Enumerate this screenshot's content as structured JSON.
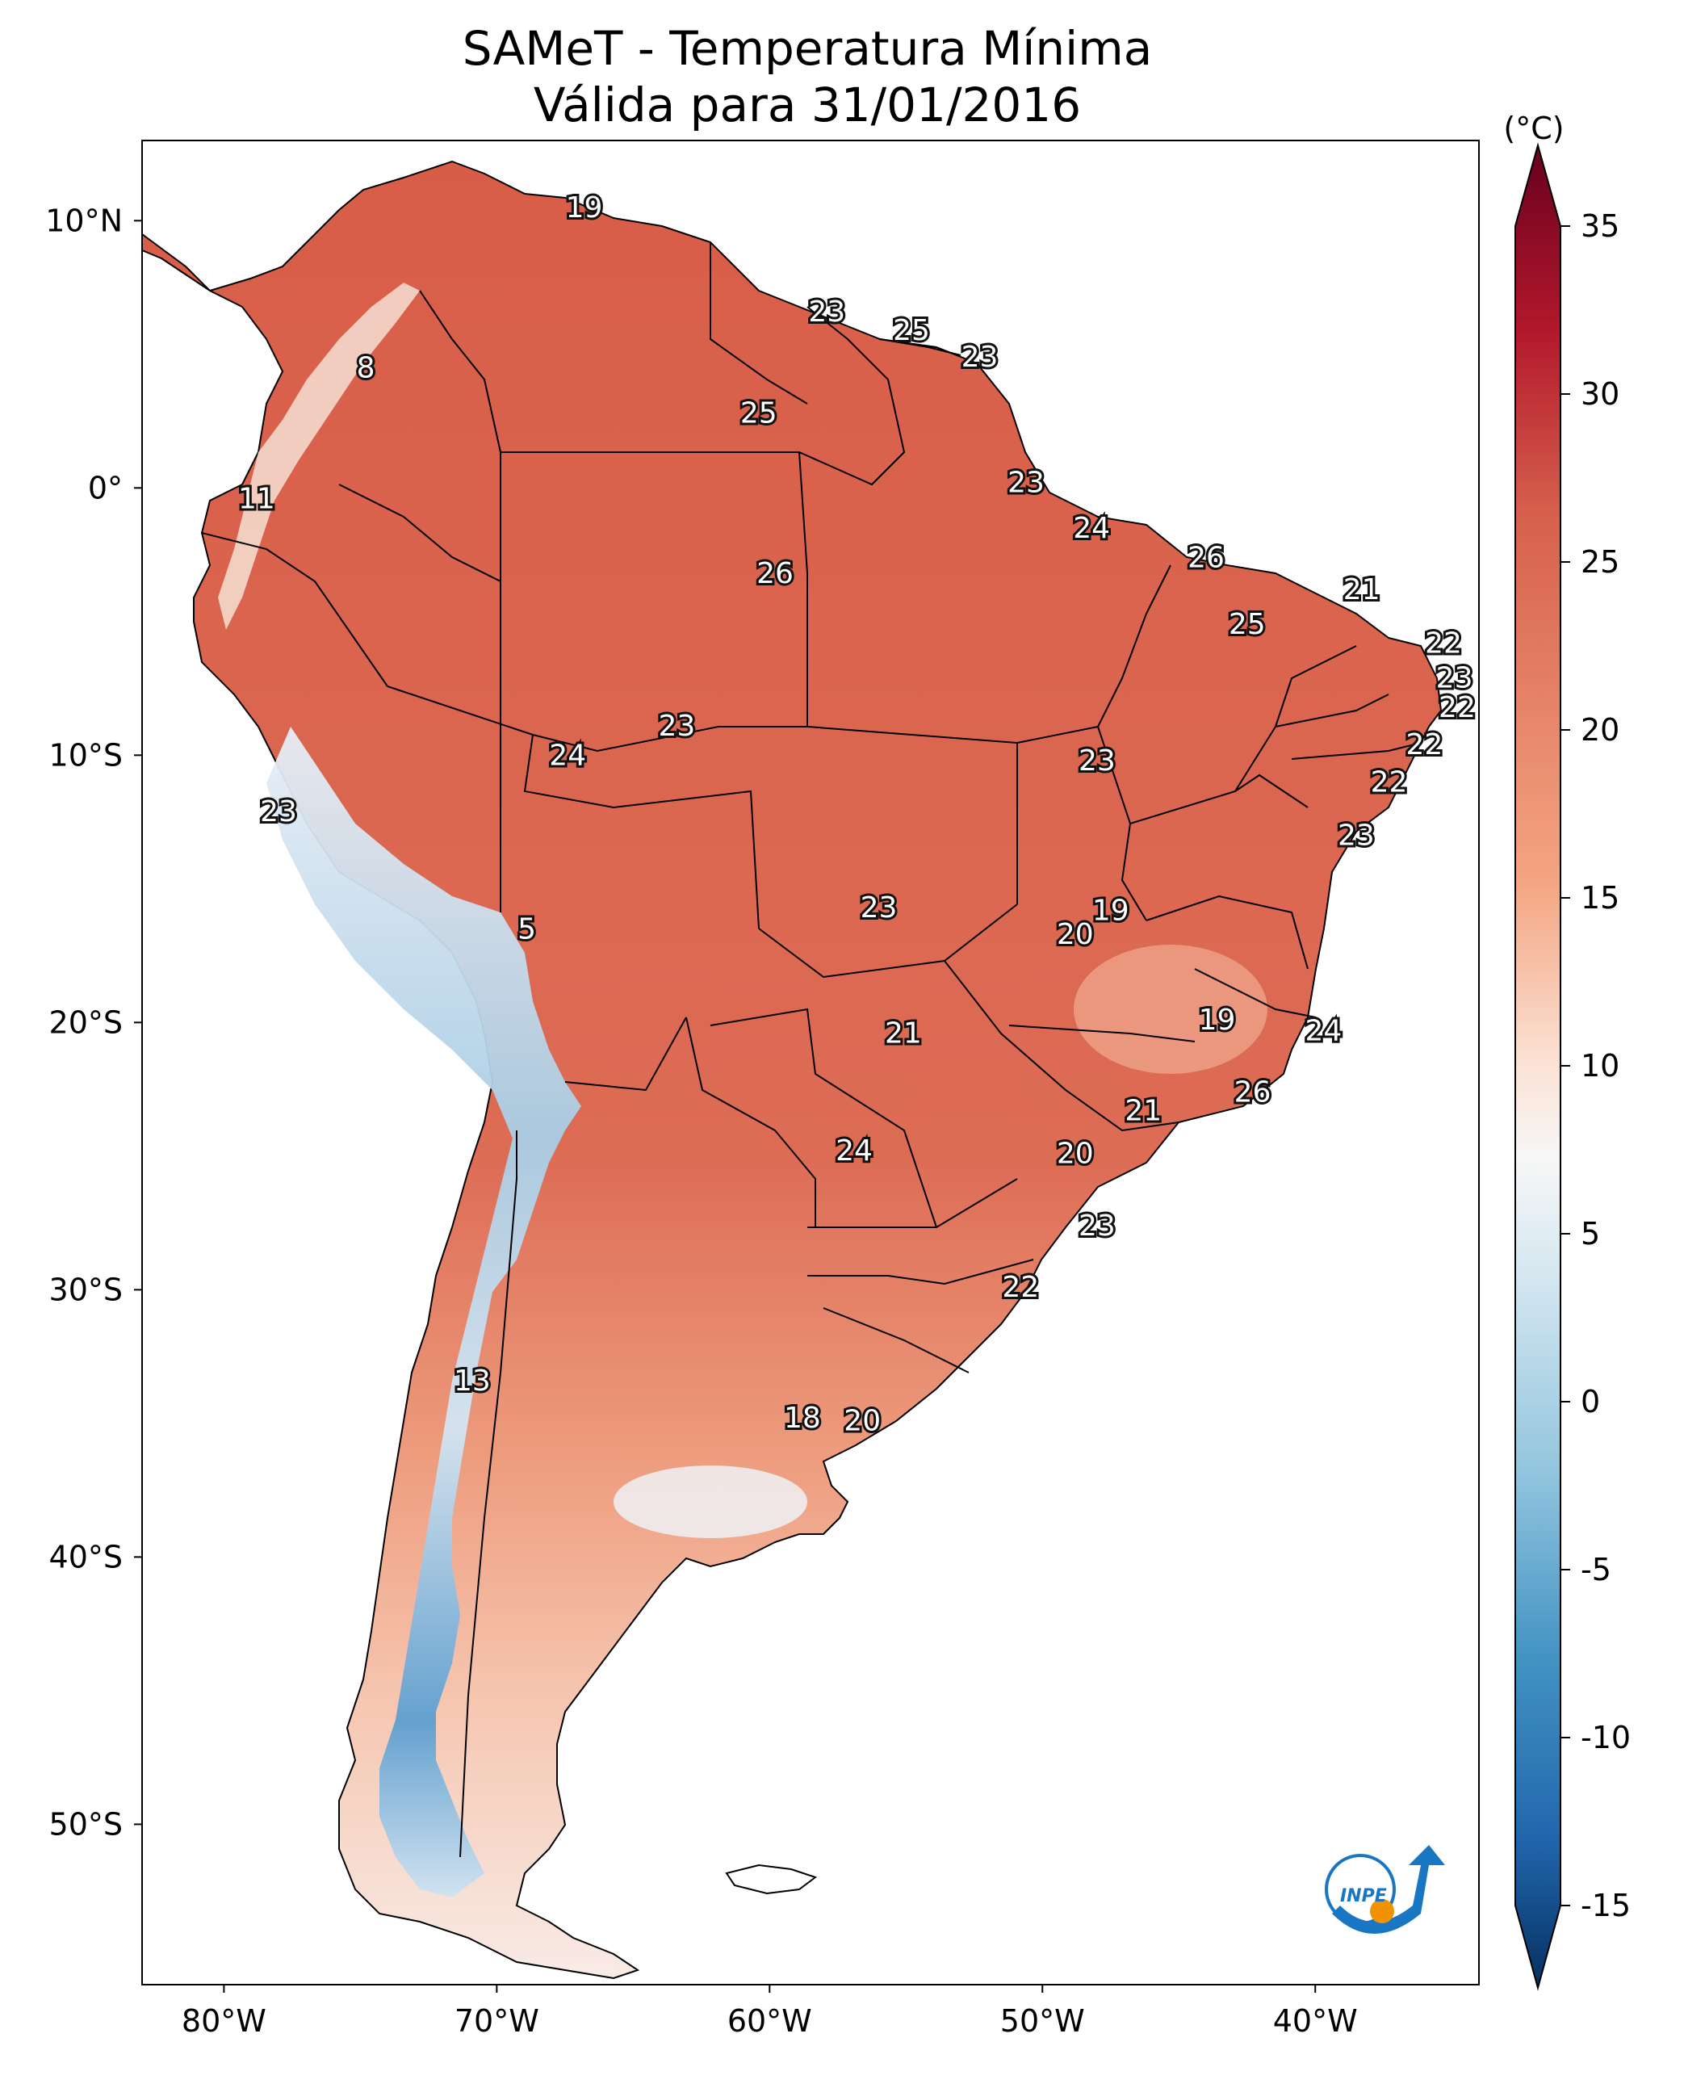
{
  "title_line1": "SAMeT - Temperatura Mínima",
  "title_line2": "Válida para 31/01/2016",
  "colorbar": {
    "unit": "(°C)",
    "ticks": [
      "35",
      "30",
      "25",
      "20",
      "15",
      "10",
      "5",
      "0",
      "-5",
      "-10",
      "-15"
    ],
    "tick_values": [
      35,
      30,
      25,
      20,
      15,
      10,
      5,
      0,
      -5,
      -10,
      -15
    ],
    "range": [
      -15,
      35
    ],
    "extend": "both",
    "colormap": "RdBu_r",
    "colors": {
      "max": "#67001f",
      "warm": "#d6604d",
      "mid": "#f7f7f7",
      "cool": "#4393c3",
      "min": "#053061"
    }
  },
  "axes": {
    "lon_ticks": [
      "80°W",
      "70°W",
      "60°W",
      "50°W",
      "40°W"
    ],
    "lat_ticks": [
      "10°N",
      "0°",
      "10°S",
      "20°S",
      "30°S",
      "40°S",
      "50°S"
    ],
    "lon_range": [
      -83,
      -34
    ],
    "lat_range": [
      -56,
      13
    ]
  },
  "map": {
    "land_warm": "#dc6c55",
    "land_mild": "#f0a183",
    "andes_cold": "#c6dbef",
    "andes_very_cold": "#6aa4d1",
    "border_color": "#000000"
  },
  "logo": {
    "text": "INPE",
    "primary": "#1976c2",
    "accent": "#f39200"
  },
  "labels": [
    {
      "text": "19",
      "lon": -66.8,
      "lat": 10.5
    },
    {
      "text": "23",
      "lon": -57.9,
      "lat": 6.6
    },
    {
      "text": "25",
      "lon": -54.8,
      "lat": 5.9
    },
    {
      "text": "23",
      "lon": -52.3,
      "lat": 4.9
    },
    {
      "text": "8",
      "lon": -74.8,
      "lat": 4.5
    },
    {
      "text": "25",
      "lon": -60.4,
      "lat": 2.8
    },
    {
      "text": "23",
      "lon": -50.6,
      "lat": 0.2
    },
    {
      "text": "11",
      "lon": -78.8,
      "lat": -0.4
    },
    {
      "text": "24",
      "lon": -48.2,
      "lat": -1.5
    },
    {
      "text": "26",
      "lon": -44.0,
      "lat": -2.6
    },
    {
      "text": "26",
      "lon": -59.8,
      "lat": -3.2
    },
    {
      "text": "21",
      "lon": -38.3,
      "lat": -3.8
    },
    {
      "text": "25",
      "lon": -42.5,
      "lat": -5.1
    },
    {
      "text": "22",
      "lon": -35.3,
      "lat": -5.8
    },
    {
      "text": "23",
      "lon": -34.9,
      "lat": -7.1
    },
    {
      "text": "22",
      "lon": -34.8,
      "lat": -8.2
    },
    {
      "text": "23",
      "lon": -63.4,
      "lat": -8.9
    },
    {
      "text": "22",
      "lon": -36.0,
      "lat": -9.6
    },
    {
      "text": "24",
      "lon": -67.4,
      "lat": -10.0
    },
    {
      "text": "23",
      "lon": -48.0,
      "lat": -10.2
    },
    {
      "text": "22",
      "lon": -37.3,
      "lat": -11.0
    },
    {
      "text": "23",
      "lon": -78.0,
      "lat": -12.1
    },
    {
      "text": "23",
      "lon": -38.5,
      "lat": -13.0
    },
    {
      "text": "23",
      "lon": -56.0,
      "lat": -15.7
    },
    {
      "text": "19",
      "lon": -47.5,
      "lat": -15.8
    },
    {
      "text": "5",
      "lon": -68.9,
      "lat": -16.5
    },
    {
      "text": "20",
      "lon": -48.8,
      "lat": -16.7
    },
    {
      "text": "19",
      "lon": -43.6,
      "lat": -19.9
    },
    {
      "text": "24",
      "lon": -39.7,
      "lat": -20.3
    },
    {
      "text": "21",
      "lon": -55.1,
      "lat": -20.4
    },
    {
      "text": "26",
      "lon": -42.3,
      "lat": -22.6
    },
    {
      "text": "21",
      "lon": -46.3,
      "lat": -23.3
    },
    {
      "text": "24",
      "lon": -56.9,
      "lat": -24.8
    },
    {
      "text": "20",
      "lon": -48.8,
      "lat": -24.9
    },
    {
      "text": "23",
      "lon": -48.0,
      "lat": -27.6
    },
    {
      "text": "22",
      "lon": -50.8,
      "lat": -29.9
    },
    {
      "text": "13",
      "lon": -70.9,
      "lat": -33.4
    },
    {
      "text": "18",
      "lon": -58.8,
      "lat": -34.8
    },
    {
      "text": "20",
      "lon": -56.6,
      "lat": -34.9
    }
  ]
}
